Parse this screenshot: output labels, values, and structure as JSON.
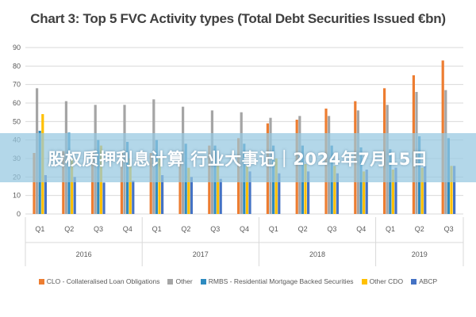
{
  "chart_data": {
    "type": "bar",
    "title": "Chart 3: Top 5 FVC Activity types (Total Debt Securities Issued €bn)",
    "categories": [
      "Q1",
      "Q2",
      "Q3",
      "Q4",
      "Q1",
      "Q2",
      "Q3",
      "Q4",
      "Q1",
      "Q2",
      "Q3",
      "Q4",
      "Q1",
      "Q2",
      "Q3"
    ],
    "groups": [
      {
        "label": "2016",
        "count": 4
      },
      {
        "label": "2017",
        "count": 4
      },
      {
        "label": "2018",
        "count": 4
      },
      {
        "label": "2019",
        "count": 3
      }
    ],
    "series": [
      {
        "name": "CLO - Collateralised Loan Obligations",
        "color": "#ED7D31",
        "values": [
          33,
          34,
          34,
          34,
          33,
          33,
          37,
          41,
          49,
          51,
          57,
          61,
          68,
          75,
          83
        ]
      },
      {
        "name": "Other",
        "color": "#A5A5A5",
        "values": [
          68,
          61,
          59,
          59,
          62,
          58,
          56,
          55,
          52,
          53,
          53,
          56,
          59,
          66,
          67
        ]
      },
      {
        "name": "RMBS - Residential Mortgage Backed Securities",
        "color": "#2E8BC0",
        "values": [
          45,
          44,
          40,
          39,
          40,
          38,
          37,
          38,
          37,
          37,
          37,
          36,
          35,
          42,
          41
        ]
      },
      {
        "name": "Other CDO",
        "color": "#FFC000",
        "values": [
          54,
          30,
          37,
          30,
          30,
          25,
          26,
          26,
          30,
          27,
          26,
          23,
          24,
          25,
          26
        ]
      },
      {
        "name": "ABCP",
        "color": "#4472C4",
        "values": [
          21,
          20,
          17,
          18,
          21,
          20,
          19,
          23,
          22,
          23,
          22,
          24,
          25,
          26,
          26
        ]
      }
    ],
    "ylim": [
      0,
      90
    ],
    "yticks": [
      0,
      10,
      20,
      30,
      40,
      50,
      60,
      70,
      80,
      90
    ],
    "grid": true,
    "legend": "bottom"
  },
  "banner": {
    "text": "股权质押利息计算 行业大事记｜2024年7月15日"
  }
}
